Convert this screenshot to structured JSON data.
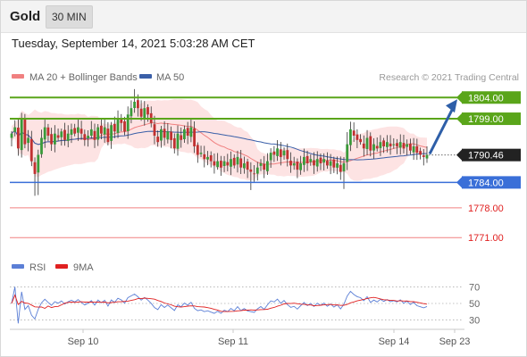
{
  "header": {
    "symbol": "Gold",
    "timeframe": "30 MIN"
  },
  "datetime": "Tuesday, September 14, 2021 5:03:28 AM CET",
  "legend": {
    "price": [
      {
        "label": "MA 20 + Bollinger Bands",
        "color": "#f08080"
      },
      {
        "label": "MA 50",
        "color": "#3a5fa8"
      }
    ],
    "rsi": [
      {
        "label": "RSI",
        "color": "#5b7fd6"
      },
      {
        "label": "9MA",
        "color": "#e02020"
      }
    ]
  },
  "credit": "Research © 2021 Trading Central",
  "colors": {
    "up": "#3a9a3a",
    "down": "#c03030",
    "resistance": "#5aa51a",
    "support": "#3a6fd8",
    "target": "#f08080",
    "current": "#222222",
    "arrow": "#2e5fa8"
  },
  "chart_data": [
    {
      "type": "candlestick",
      "ylim": [
        1766,
        1807
      ],
      "x_ticks": [
        "Sep 10",
        "Sep 11",
        "Sep 14",
        "Sep 23"
      ],
      "levels": [
        {
          "value": "1804.00",
          "kind": "resistance"
        },
        {
          "value": "1799.00",
          "kind": "resistance"
        },
        {
          "value": "1790.46",
          "kind": "current"
        },
        {
          "value": "1784.00",
          "kind": "support"
        },
        {
          "value": "1778.00",
          "kind": "target"
        },
        {
          "value": "1771.00",
          "kind": "target"
        }
      ],
      "closes": [
        1795.5,
        1797.0,
        1792.0,
        1799.0,
        1793.0,
        1794.5,
        1789.0,
        1786.0,
        1790.5,
        1794.5,
        1797.0,
        1795.0,
        1793.0,
        1795.5,
        1794.5,
        1796.0,
        1794.0,
        1795.5,
        1796.5,
        1795.5,
        1797.0,
        1795.5,
        1794.0,
        1795.0,
        1796.5,
        1794.0,
        1797.0,
        1795.5,
        1797.0,
        1793.5,
        1797.5,
        1796.0,
        1799.0,
        1798.0,
        1796.0,
        1800.0,
        1801.5,
        1803.0,
        1801.5,
        1799.5,
        1801.5,
        1800.0,
        1798.0,
        1795.0,
        1793.5,
        1796.5,
        1794.5,
        1796.0,
        1794.0,
        1792.0,
        1795.5,
        1794.0,
        1796.5,
        1795.0,
        1797.0,
        1792.5,
        1790.5,
        1791.0,
        1789.5,
        1790.0,
        1789.0,
        1788.0,
        1789.0,
        1787.5,
        1789.0,
        1788.0,
        1789.5,
        1788.0,
        1790.0,
        1787.5,
        1788.5,
        1787.0,
        1786.5,
        1786.0,
        1787.5,
        1788.5,
        1787.0,
        1789.0,
        1791.0,
        1790.5,
        1792.0,
        1790.0,
        1791.5,
        1789.5,
        1788.0,
        1788.5,
        1787.0,
        1788.5,
        1790.0,
        1788.5,
        1789.5,
        1788.0,
        1789.5,
        1788.5,
        1789.5,
        1788.0,
        1789.0,
        1787.5,
        1788.5,
        1786.5,
        1788.5,
        1793.0,
        1796.5,
        1795.0,
        1794.0,
        1793.5,
        1792.0,
        1794.5,
        1791.5,
        1793.0,
        1792.0,
        1793.5,
        1792.5,
        1793.5,
        1792.5,
        1793.0,
        1792.5,
        1793.5,
        1792.0,
        1793.0,
        1791.5,
        1792.5,
        1791.0,
        1790.5,
        1790.0,
        1790.5
      ],
      "rsi": {
        "ticks": [
          70,
          50,
          30
        ],
        "ylim": [
          22,
          78
        ]
      }
    }
  ]
}
